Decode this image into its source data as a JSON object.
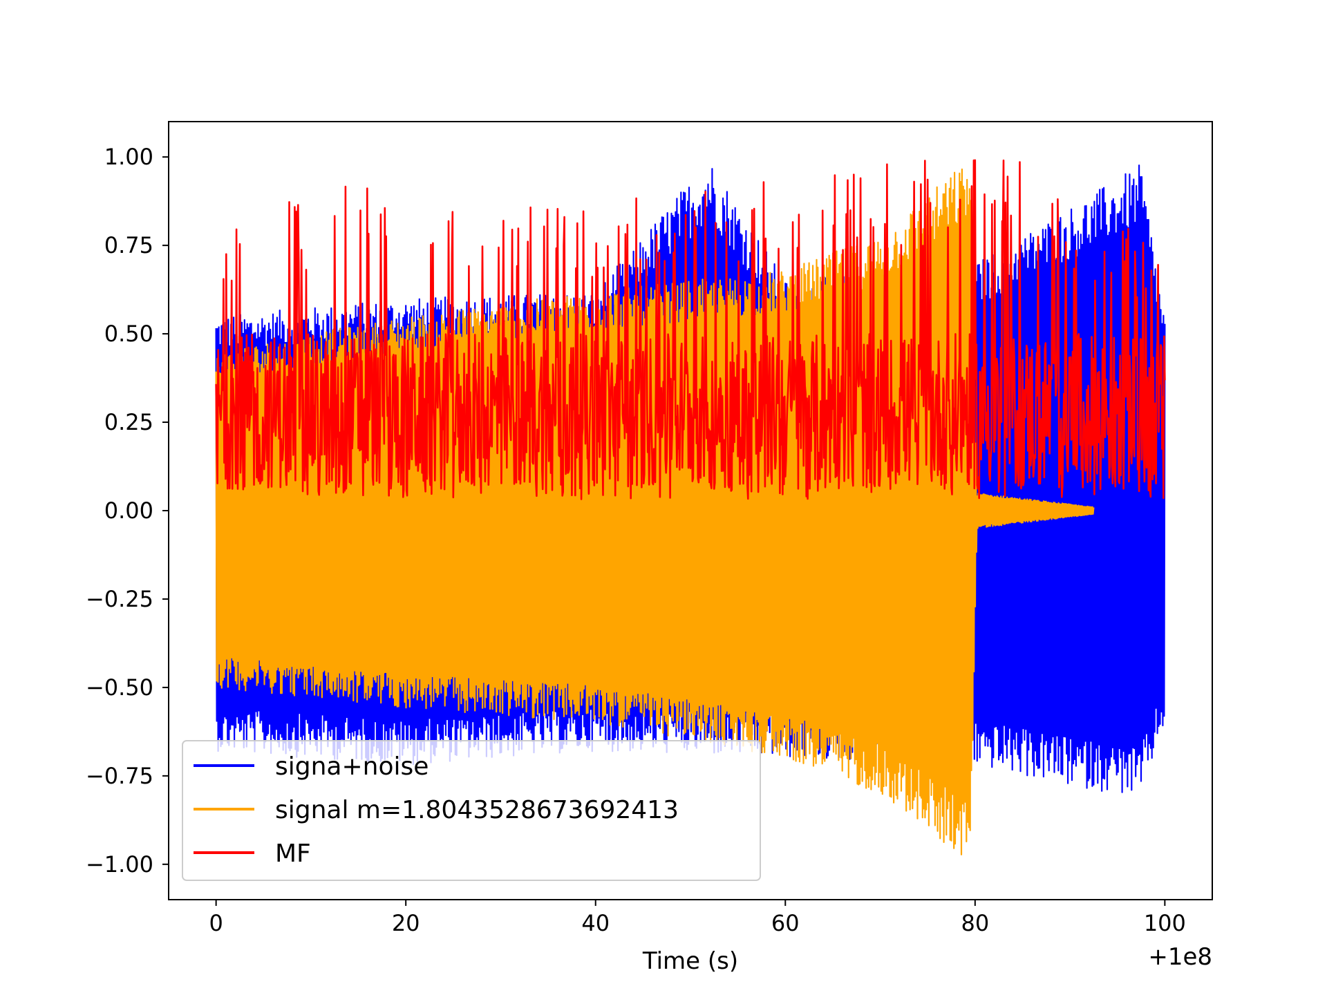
{
  "chart_data": {
    "type": "line",
    "xlabel": "Time (s)",
    "ylabel": "",
    "x_offset_label": "+1e8",
    "xlim": [
      -5,
      105
    ],
    "ylim": [
      -1.1,
      1.1
    ],
    "x_ticks": [
      0,
      20,
      40,
      60,
      80,
      100
    ],
    "x_tick_labels": [
      "0",
      "20",
      "40",
      "60",
      "80",
      "100"
    ],
    "y_ticks": [
      1.0,
      0.75,
      0.5,
      0.25,
      0.0,
      -0.25,
      -0.5,
      -0.75,
      -1.0
    ],
    "y_tick_labels": [
      "1.00",
      "0.75",
      "0.50",
      "0.25",
      "0.00",
      "−0.25",
      "−0.50",
      "−0.75",
      "−1.00"
    ],
    "grid": false,
    "legend_position": "lower-left",
    "series": [
      {
        "name": "signa+noise",
        "color": "#0000ff",
        "x_range": [
          0,
          100
        ],
        "description_envelope": {
          "upper": [
            [
              0,
              0.55
            ],
            [
              20,
              0.6
            ],
            [
              40,
              0.62
            ],
            [
              52,
              1.0
            ],
            [
              60,
              0.65
            ],
            [
              80,
              0.7
            ],
            [
              97.5,
              0.98
            ],
            [
              100,
              0.55
            ]
          ],
          "lower": [
            [
              0,
              -0.68
            ],
            [
              20,
              -0.72
            ],
            [
              40,
              -0.68
            ],
            [
              60,
              -0.7
            ],
            [
              80,
              -0.72
            ],
            [
              90,
              -0.78
            ],
            [
              97.5,
              -0.81
            ],
            [
              100,
              -0.6
            ]
          ]
        }
      },
      {
        "name": "signal m=1.8043528673692413",
        "color": "#ffa500",
        "x_range": [
          0,
          92.5
        ],
        "description_envelope": {
          "upper": [
            [
              0,
              0.45
            ],
            [
              20,
              0.55
            ],
            [
              40,
              0.62
            ],
            [
              60,
              0.68
            ],
            [
              70,
              0.78
            ],
            [
              79.5,
              1.0
            ],
            [
              80.2,
              0.05
            ],
            [
              92.5,
              0.01
            ]
          ],
          "lower": [
            [
              0,
              -0.5
            ],
            [
              20,
              -0.56
            ],
            [
              40,
              -0.6
            ],
            [
              60,
              -0.7
            ],
            [
              70,
              -0.8
            ],
            [
              79.5,
              -1.0
            ],
            [
              80.2,
              -0.05
            ],
            [
              92.5,
              -0.01
            ]
          ]
        }
      },
      {
        "name": "MF",
        "color": "#ff0000",
        "x_range": [
          0,
          100
        ],
        "description_envelope": {
          "upper": [
            [
              0,
              0.84
            ],
            [
              15,
              0.94
            ],
            [
              40,
              0.87
            ],
            [
              64,
              0.98
            ],
            [
              86,
              1.0
            ],
            [
              100,
              0.72
            ]
          ],
          "lower": [
            [
              0,
              0.04
            ],
            [
              50,
              0.03
            ],
            [
              100,
              0.03
            ]
          ]
        }
      }
    ]
  }
}
